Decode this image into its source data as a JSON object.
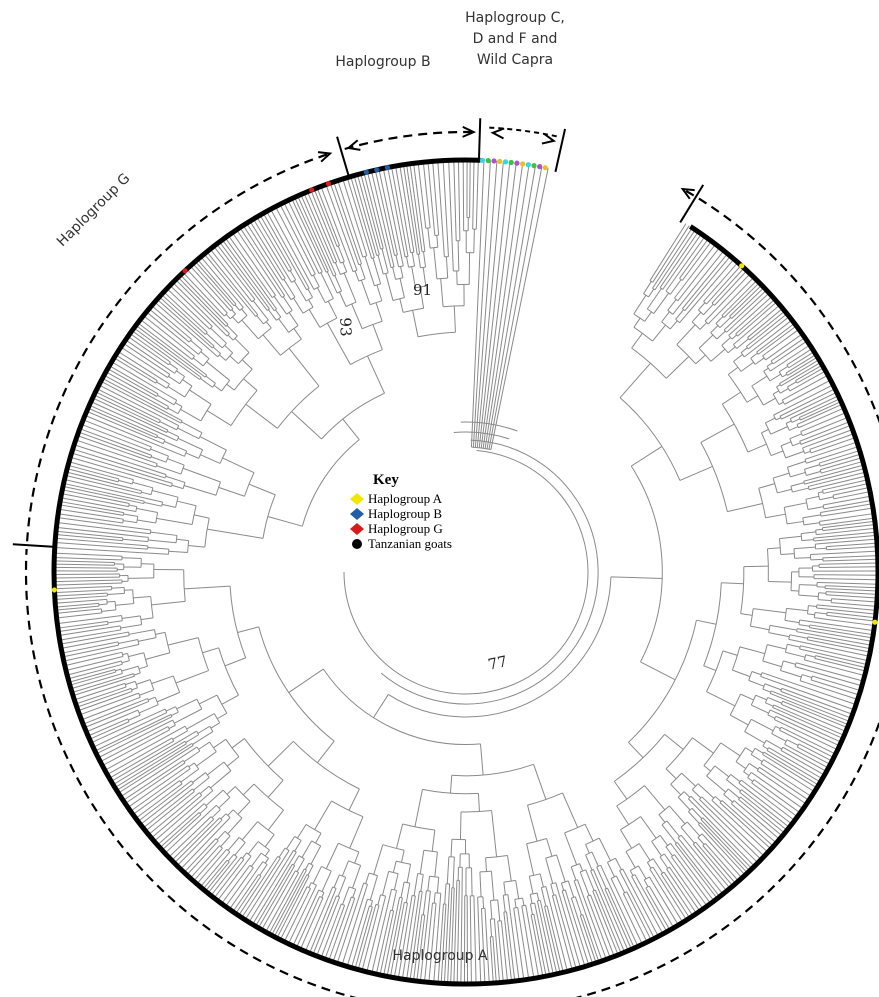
{
  "figure": {
    "group_labels": {
      "haplogroup_cdf": "Haplogroup C,\nD and F and\nWild Capra",
      "haplogroup_b": "Haplogroup B",
      "haplogroup_g": "Haplogroup G",
      "haplogroup_a": "Haplogroup A"
    },
    "support_values": {
      "node_91": "91",
      "node_93": "93",
      "node_77": "77"
    },
    "key": {
      "title": "Key",
      "items": [
        {
          "label": "Haplogroup A",
          "shape": "diamond",
          "color": "#f2e600"
        },
        {
          "label": "Haplogroup B",
          "shape": "diamond",
          "color": "#1f5fa8"
        },
        {
          "label": "Haplogroup G",
          "shape": "diamond",
          "color": "#d81c1c"
        },
        {
          "label": "Tanzanian goats",
          "shape": "circle",
          "color": "#000000"
        }
      ]
    },
    "colors": {
      "tree_line": "#8a8a8a",
      "tip_ring": "#000000",
      "brackets": "#000000",
      "haplogroup_a_tip": "#f2e600",
      "haplogroup_b_tip": "#1f5fa8",
      "haplogroup_g_tip": "#d81c1c",
      "cdf_tips": [
        "#35d6e6",
        "#40c040",
        "#b050d0",
        "#e8c020"
      ]
    }
  }
}
